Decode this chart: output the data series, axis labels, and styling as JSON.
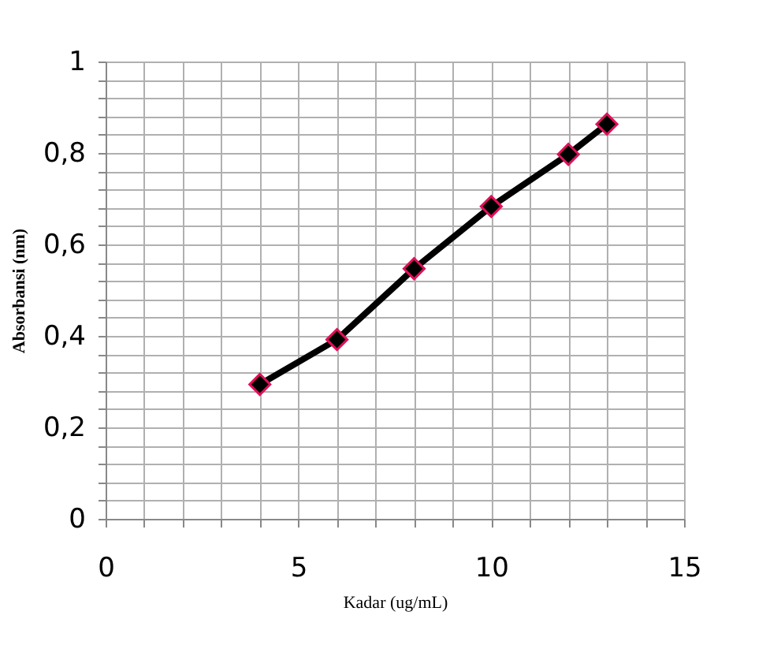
{
  "chart_data": {
    "type": "line",
    "xlabel": "Kadar (ug/mL)",
    "ylabel": "Absorbansi (nm)",
    "x": [
      4,
      6,
      8,
      10,
      12,
      13
    ],
    "series": [
      {
        "color": "#000000",
        "values": [
          0.294,
          0.392,
          0.547,
          0.683,
          0.797,
          0.863
        ]
      }
    ],
    "marker": "diamond",
    "line_style": "solid",
    "grid": true,
    "legend": false,
    "xlim": [
      0,
      15
    ],
    "ylim": [
      0,
      1
    ],
    "xticks": [
      0,
      {
        "value": 1,
        "label": null
      },
      {
        "value": 2,
        "label": null
      },
      {
        "value": 3,
        "label": null
      },
      {
        "value": 4,
        "label": null
      },
      5,
      {
        "value": 6,
        "label": null
      },
      {
        "value": 7,
        "label": null
      },
      {
        "value": 8,
        "label": null
      },
      {
        "value": 9,
        "label": null
      },
      10,
      {
        "value": 11,
        "label": null
      },
      {
        "value": 12,
        "label": null
      },
      {
        "value": 13,
        "label": null
      },
      {
        "value": 14,
        "label": null
      },
      15
    ],
    "yticks": [
      0,
      {
        "value": 0.04,
        "label": null
      },
      {
        "value": 0.08,
        "label": null
      },
      {
        "value": 0.12,
        "label": null
      },
      {
        "value": 0.16,
        "label": null
      },
      {
        "value": 0.2,
        "label": "0,2"
      },
      {
        "value": 0.24,
        "label": null
      },
      {
        "value": 0.28,
        "label": null
      },
      {
        "value": 0.32,
        "label": null
      },
      {
        "value": 0.36,
        "label": null
      },
      {
        "value": 0.4,
        "label": "0,4"
      },
      {
        "value": 0.44,
        "label": null
      },
      {
        "value": 0.48,
        "label": null
      },
      {
        "value": 0.52,
        "label": null
      },
      {
        "value": 0.56,
        "label": null
      },
      {
        "value": 0.6,
        "label": "0,6"
      },
      {
        "value": 0.64,
        "label": null
      },
      {
        "value": 0.68,
        "label": null
      },
      {
        "value": 0.72,
        "label": null
      },
      {
        "value": 0.76,
        "label": null
      },
      {
        "value": 0.8,
        "label": "0,8"
      },
      {
        "value": 0.84,
        "label": null
      },
      {
        "value": 0.88,
        "label": null
      },
      {
        "value": 0.92,
        "label": null
      },
      {
        "value": 0.96,
        "label": null
      },
      1
    ]
  }
}
